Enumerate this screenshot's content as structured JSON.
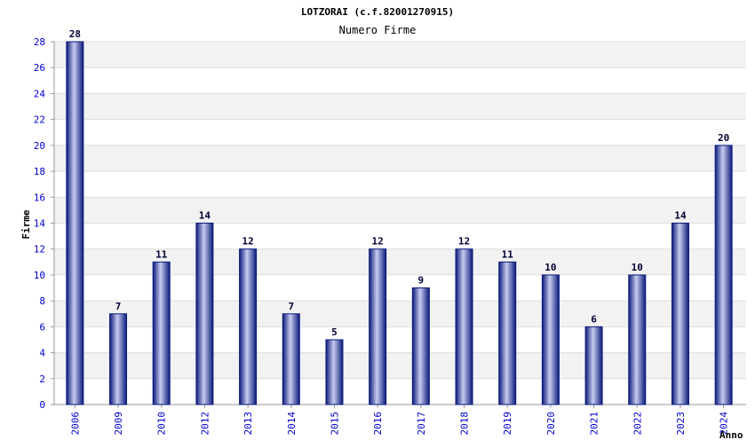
{
  "chart_data": {
    "type": "bar",
    "title": "LOTZORAI (c.f.82001270915)",
    "subtitle": "Numero Firme",
    "xlabel": "Anno",
    "ylabel": "Firme",
    "categories": [
      "2006",
      "2009",
      "2010",
      "2012",
      "2013",
      "2014",
      "2015",
      "2016",
      "2017",
      "2018",
      "2019",
      "2020",
      "2021",
      "2022",
      "2023",
      "2024"
    ],
    "values": [
      28,
      7,
      11,
      14,
      12,
      7,
      5,
      12,
      9,
      12,
      11,
      10,
      6,
      10,
      14,
      20
    ],
    "ylim": [
      0,
      28
    ],
    "yticks": [
      0,
      2,
      4,
      6,
      8,
      10,
      12,
      14,
      16,
      18,
      20,
      22,
      24,
      26,
      28
    ],
    "grid": true,
    "colors": {
      "bar_dark": "#0a1a7a",
      "bar_light": "#c8ccf0",
      "band_alt": "#f2f2f2",
      "band_base": "#ffffff",
      "grid": "#dddddd",
      "tick_text": "#0000cc",
      "value_text": "#000033"
    }
  }
}
